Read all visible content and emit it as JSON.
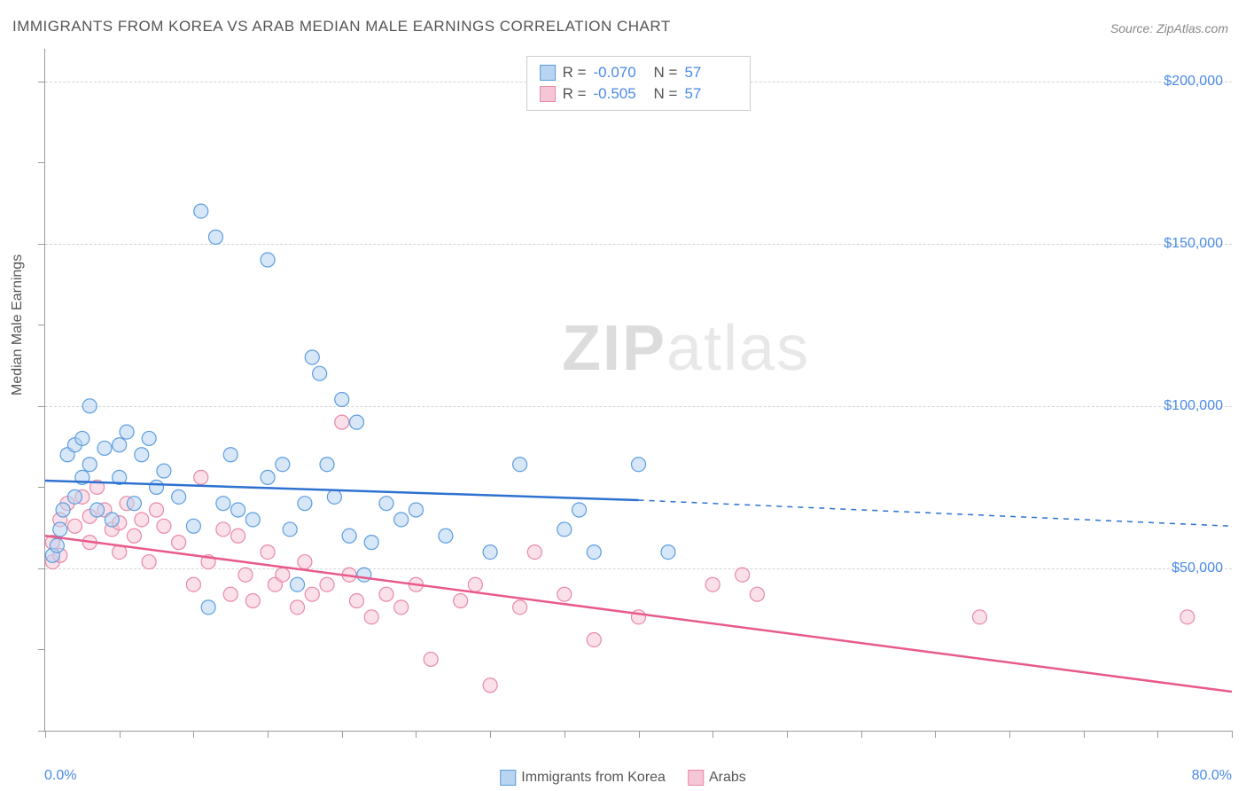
{
  "title": "IMMIGRANTS FROM KOREA VS ARAB MEDIAN MALE EARNINGS CORRELATION CHART",
  "source": "Source: ZipAtlas.com",
  "ylabel": "Median Male Earnings",
  "watermark_a": "ZIP",
  "watermark_b": "atlas",
  "chart": {
    "type": "scatter",
    "xlim": [
      0,
      80
    ],
    "ylim": [
      0,
      210000
    ],
    "x_min_label": "0.0%",
    "x_max_label": "80.0%",
    "y_ticks": [
      50000,
      100000,
      150000,
      200000
    ],
    "y_tick_labels": [
      "$50,000",
      "$100,000",
      "$150,000",
      "$200,000"
    ],
    "x_tick_positions": [
      0,
      5,
      10,
      15,
      20,
      25,
      30,
      35,
      40,
      45,
      50,
      55,
      60,
      65,
      70,
      75,
      80
    ],
    "y_minor_ticks": [
      0,
      25000,
      50000,
      75000,
      100000,
      125000,
      150000,
      175000,
      200000
    ],
    "grid_color": "#d5d5d5",
    "axis_color": "#999999",
    "background_color": "#ffffff",
    "marker_radius": 8,
    "marker_stroke_width": 1.2,
    "trend_line_width": 2.5,
    "series": {
      "korea": {
        "label": "Immigrants from Korea",
        "fill_color": "#b8d4f0",
        "stroke_color": "#5a9de0",
        "fill_opacity": 0.55,
        "R": "-0.070",
        "N": "57",
        "trend_color": "#2d72d0",
        "trend_start": [
          0,
          77000
        ],
        "trend_solid_end": [
          40,
          71000
        ],
        "trend_dash_end": [
          80,
          63000
        ],
        "points": [
          [
            0.5,
            54000
          ],
          [
            0.8,
            57000
          ],
          [
            1,
            62000
          ],
          [
            1.2,
            68000
          ],
          [
            1.5,
            85000
          ],
          [
            2,
            72000
          ],
          [
            2,
            88000
          ],
          [
            2.5,
            90000
          ],
          [
            2.5,
            78000
          ],
          [
            3,
            82000
          ],
          [
            3,
            100000
          ],
          [
            3.5,
            68000
          ],
          [
            4,
            87000
          ],
          [
            4.5,
            65000
          ],
          [
            5,
            78000
          ],
          [
            5,
            88000
          ],
          [
            5.5,
            92000
          ],
          [
            6,
            70000
          ],
          [
            6.5,
            85000
          ],
          [
            7,
            90000
          ],
          [
            7.5,
            75000
          ],
          [
            8,
            80000
          ],
          [
            9,
            72000
          ],
          [
            10,
            63000
          ],
          [
            10.5,
            160000
          ],
          [
            11,
            38000
          ],
          [
            11.5,
            152000
          ],
          [
            12,
            70000
          ],
          [
            12.5,
            85000
          ],
          [
            13,
            68000
          ],
          [
            14,
            65000
          ],
          [
            15,
            145000
          ],
          [
            15,
            78000
          ],
          [
            16,
            82000
          ],
          [
            16.5,
            62000
          ],
          [
            17,
            45000
          ],
          [
            17.5,
            70000
          ],
          [
            18,
            115000
          ],
          [
            18.5,
            110000
          ],
          [
            19,
            82000
          ],
          [
            19.5,
            72000
          ],
          [
            20,
            102000
          ],
          [
            20.5,
            60000
          ],
          [
            21,
            95000
          ],
          [
            21.5,
            48000
          ],
          [
            22,
            58000
          ],
          [
            23,
            70000
          ],
          [
            24,
            65000
          ],
          [
            25,
            68000
          ],
          [
            27,
            60000
          ],
          [
            30,
            55000
          ],
          [
            32,
            82000
          ],
          [
            35,
            62000
          ],
          [
            36,
            68000
          ],
          [
            37,
            55000
          ],
          [
            40,
            82000
          ],
          [
            42,
            55000
          ]
        ]
      },
      "arab": {
        "label": "Arabs",
        "fill_color": "#f5c6d6",
        "stroke_color": "#e888a8",
        "fill_opacity": 0.55,
        "R": "-0.505",
        "N": "57",
        "trend_color": "#e85a8a",
        "trend_start": [
          0,
          60000
        ],
        "trend_end": [
          80,
          12000
        ],
        "points": [
          [
            0.5,
            52000
          ],
          [
            0.5,
            58000
          ],
          [
            1,
            54000
          ],
          [
            1,
            65000
          ],
          [
            1.5,
            70000
          ],
          [
            2,
            63000
          ],
          [
            2.5,
            72000
          ],
          [
            3,
            66000
          ],
          [
            3,
            58000
          ],
          [
            3.5,
            75000
          ],
          [
            4,
            68000
          ],
          [
            4.5,
            62000
          ],
          [
            5,
            64000
          ],
          [
            5,
            55000
          ],
          [
            5.5,
            70000
          ],
          [
            6,
            60000
          ],
          [
            6.5,
            65000
          ],
          [
            7,
            52000
          ],
          [
            7.5,
            68000
          ],
          [
            8,
            63000
          ],
          [
            9,
            58000
          ],
          [
            10,
            45000
          ],
          [
            10.5,
            78000
          ],
          [
            11,
            52000
          ],
          [
            12,
            62000
          ],
          [
            12.5,
            42000
          ],
          [
            13,
            60000
          ],
          [
            13.5,
            48000
          ],
          [
            14,
            40000
          ],
          [
            15,
            55000
          ],
          [
            15.5,
            45000
          ],
          [
            16,
            48000
          ],
          [
            17,
            38000
          ],
          [
            17.5,
            52000
          ],
          [
            18,
            42000
          ],
          [
            19,
            45000
          ],
          [
            20,
            95000
          ],
          [
            20.5,
            48000
          ],
          [
            21,
            40000
          ],
          [
            22,
            35000
          ],
          [
            23,
            42000
          ],
          [
            24,
            38000
          ],
          [
            25,
            45000
          ],
          [
            26,
            22000
          ],
          [
            28,
            40000
          ],
          [
            29,
            45000
          ],
          [
            30,
            14000
          ],
          [
            32,
            38000
          ],
          [
            33,
            55000
          ],
          [
            35,
            42000
          ],
          [
            37,
            28000
          ],
          [
            40,
            35000
          ],
          [
            45,
            45000
          ],
          [
            47,
            48000
          ],
          [
            48,
            42000
          ],
          [
            63,
            35000
          ],
          [
            77,
            35000
          ]
        ]
      }
    }
  },
  "legend": {
    "R_label": "R =",
    "N_label": "N ="
  }
}
